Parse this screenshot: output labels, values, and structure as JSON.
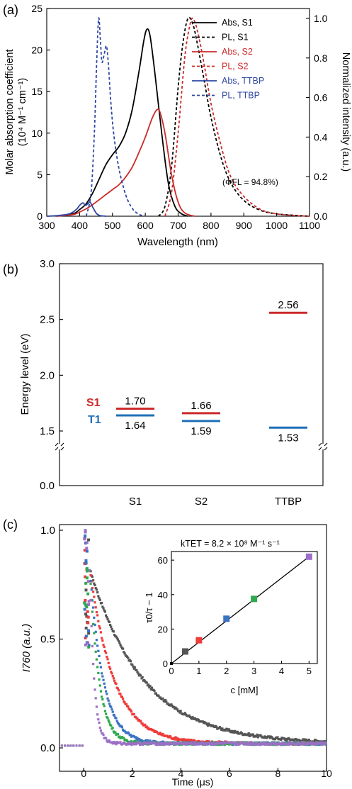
{
  "panels": [
    {
      "id": "a",
      "label": "(a)"
    },
    {
      "id": "b",
      "label": "(b)"
    },
    {
      "id": "c",
      "label": "(c)"
    }
  ],
  "chart_data": [
    {
      "panel": "(a)",
      "type": "line",
      "xlabel": "Wavelength (nm)",
      "ylabel_left_line1": "Molar absorption coefficient",
      "ylabel_left_line2": "(10⁴ M⁻¹ cm⁻¹)",
      "ylabel_right": "Normalized intensity (a.u.)",
      "xlim": [
        300,
        1100
      ],
      "ylim_left": [
        0,
        25
      ],
      "ylim_right": [
        0,
        1.05
      ],
      "xticks": [
        300,
        400,
        500,
        600,
        700,
        800,
        900,
        1000,
        1100
      ],
      "yticks_left": [
        0,
        5,
        10,
        15,
        20,
        25
      ],
      "yticks_right": [
        0.0,
        0.2,
        0.4,
        0.6,
        0.8,
        1.0
      ],
      "legend_position": "top-right",
      "legend_note": "(ΦFL = 94.8%)",
      "series": [
        {
          "name": "Abs, S1",
          "axis": "left",
          "color": "#000000",
          "dash": false,
          "x": [
            330,
            380,
            400,
            420,
            440,
            460,
            480,
            500,
            520,
            540,
            560,
            580,
            595,
            605,
            615,
            630,
            650,
            670,
            690,
            710,
            730
          ],
          "y": [
            0,
            0.3,
            0.8,
            1.5,
            2.8,
            4.5,
            6.2,
            7.4,
            8.4,
            10.0,
            12.8,
            17.2,
            21.0,
            22.5,
            21.6,
            17.0,
            10.0,
            4.0,
            1.2,
            0.3,
            0
          ]
        },
        {
          "name": "PL, S1",
          "axis": "right",
          "color": "#000000",
          "dash": true,
          "x": [
            640,
            660,
            680,
            700,
            715,
            730,
            745,
            760,
            780,
            800,
            830,
            860,
            900,
            950,
            1000,
            1050,
            1100
          ],
          "y": [
            0,
            0.05,
            0.25,
            0.65,
            0.88,
            1.0,
            0.97,
            0.86,
            0.68,
            0.5,
            0.3,
            0.17,
            0.08,
            0.03,
            0.012,
            0.005,
            0
          ]
        },
        {
          "name": "Abs, S2",
          "axis": "left",
          "color": "#cc2a2a",
          "dash": false,
          "x": [
            330,
            380,
            400,
            420,
            440,
            460,
            480,
            500,
            520,
            540,
            560,
            580,
            600,
            620,
            635,
            645,
            660,
            680,
            700,
            720,
            750
          ],
          "y": [
            0,
            0.2,
            0.5,
            0.9,
            1.4,
            2.0,
            2.6,
            3.2,
            3.8,
            4.7,
            5.9,
            7.6,
            9.5,
            11.7,
            12.8,
            12.5,
            10.0,
            5.0,
            1.7,
            0.4,
            0
          ]
        },
        {
          "name": "PL, S2",
          "axis": "right",
          "color": "#cc2a2a",
          "dash": true,
          "x": [
            660,
            680,
            700,
            720,
            735,
            745,
            760,
            780,
            800,
            830,
            860,
            900,
            950,
            1000,
            1050,
            1100
          ],
          "y": [
            0,
            0.12,
            0.42,
            0.8,
            0.96,
            1.0,
            0.93,
            0.76,
            0.57,
            0.36,
            0.2,
            0.1,
            0.035,
            0.012,
            0.004,
            0
          ]
        },
        {
          "name": "Abs, TTBP",
          "axis": "left",
          "color": "#2f47a3",
          "dash": false,
          "x": [
            300,
            340,
            370,
            390,
            400,
            410,
            418,
            425,
            432,
            440,
            450,
            460,
            480
          ],
          "y": [
            0,
            0.1,
            0.3,
            0.8,
            1.3,
            1.6,
            1.3,
            1.5,
            1.7,
            1.1,
            0.4,
            0.1,
            0
          ]
        },
        {
          "name": "PL, TTBP",
          "axis": "right",
          "color": "#2f47a3",
          "dash": true,
          "x": [
            420,
            435,
            445,
            452,
            458,
            463,
            468,
            475,
            482,
            488,
            495,
            505,
            520,
            540,
            560,
            580,
            600
          ],
          "y": [
            0,
            0.12,
            0.42,
            0.78,
            1.0,
            0.9,
            0.78,
            0.82,
            0.86,
            0.76,
            0.58,
            0.4,
            0.24,
            0.11,
            0.04,
            0.01,
            0
          ]
        }
      ]
    },
    {
      "panel": "(b)",
      "type": "bar",
      "ylabel": "Energy level (eV)",
      "yticks": [
        "0.0",
        "1.5",
        "2.0",
        "2.5",
        "3.0"
      ],
      "categories": [
        "S1",
        "S2",
        "TTBP"
      ],
      "level_labels": {
        "singlet": "S1",
        "triplet": "T1"
      },
      "series": [
        {
          "name": "S1",
          "color": "#cc2a2a",
          "values": [
            1.7,
            1.66,
            2.56
          ],
          "labels": [
            "1.70",
            "1.66",
            "2.56"
          ]
        },
        {
          "name": "T1",
          "color": "#1f6fb8",
          "values": [
            1.64,
            1.59,
            1.53
          ],
          "labels": [
            "1.64",
            "1.59",
            "1.53"
          ]
        }
      ]
    },
    {
      "panel": "(c)",
      "type": "scatter",
      "xlabel": "Time (μs)",
      "ylabel": "I760 (a.u.)",
      "xlim": [
        -1,
        10
      ],
      "ylim": [
        0,
        1
      ],
      "xticks": [
        0,
        2,
        4,
        6,
        8,
        10
      ],
      "yticks": [
        "0.0",
        "0.5",
        "1.0"
      ],
      "decays": [
        {
          "c_mM": 0.5,
          "color": "#555555",
          "tau_us": 2.2
        },
        {
          "c_mM": 1,
          "color": "#ef3b3b",
          "tau_us": 1.0
        },
        {
          "c_mM": 2,
          "color": "#3a72c4",
          "tau_us": 0.55
        },
        {
          "c_mM": 3,
          "color": "#2fa84f",
          "tau_us": 0.38
        },
        {
          "c_mM": 5,
          "color": "#9b6fc6",
          "tau_us": 0.18
        }
      ],
      "inset": {
        "title": "kTET = 8.2 × 10⁸ M⁻¹ s⁻¹",
        "xlabel": "c [mM]",
        "ylabel": "τ0/τ − 1",
        "xlim": [
          0,
          5.3
        ],
        "ylim": [
          0,
          65
        ],
        "xticks": [
          0,
          1,
          2,
          3,
          4,
          5
        ],
        "yticks": [
          0,
          20,
          40,
          60
        ],
        "x": [
          0,
          0.5,
          1,
          2,
          3,
          5
        ],
        "y": [
          0,
          7,
          13.5,
          26,
          37.5,
          62
        ],
        "colors": [
          "#000000",
          "#555555",
          "#ef3b3b",
          "#3a72c4",
          "#2fa84f",
          "#9b6fc6"
        ],
        "fit_line": {
          "x": [
            0,
            5
          ],
          "y": [
            0,
            62
          ]
        }
      }
    }
  ]
}
